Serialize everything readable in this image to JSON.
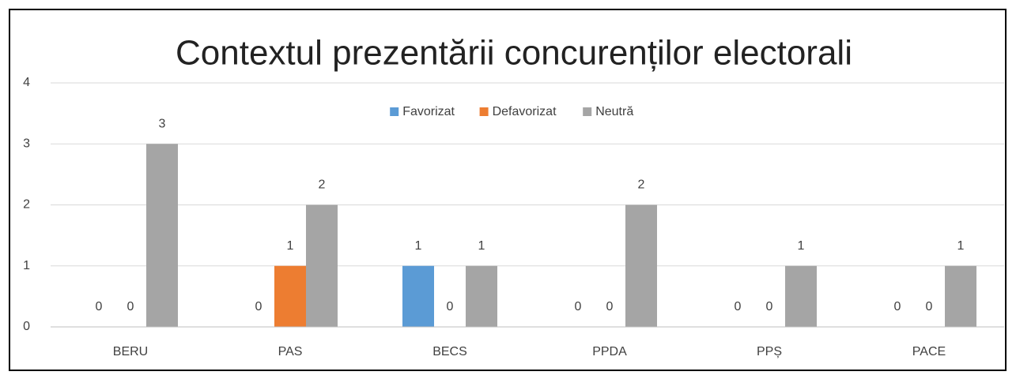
{
  "chart_data": {
    "type": "bar",
    "title": "Contextul prezentării concurenților electorali",
    "categories": [
      "BERU",
      "PAS",
      "BECS",
      "PPDA",
      "PPȘ",
      "PACE"
    ],
    "series": [
      {
        "name": "Favorizat",
        "color": "#5b9bd5",
        "values": [
          0,
          0,
          1,
          0,
          0,
          0
        ]
      },
      {
        "name": "Defavorizat",
        "color": "#ed7d31",
        "values": [
          0,
          1,
          0,
          0,
          0,
          0
        ]
      },
      {
        "name": "Neutră",
        "color": "#a5a5a5",
        "values": [
          3,
          2,
          1,
          2,
          1,
          1
        ]
      }
    ],
    "ylim": [
      0,
      4
    ],
    "yticks": [
      0,
      1,
      2,
      3,
      4
    ],
    "grid": true,
    "legend": "top"
  }
}
